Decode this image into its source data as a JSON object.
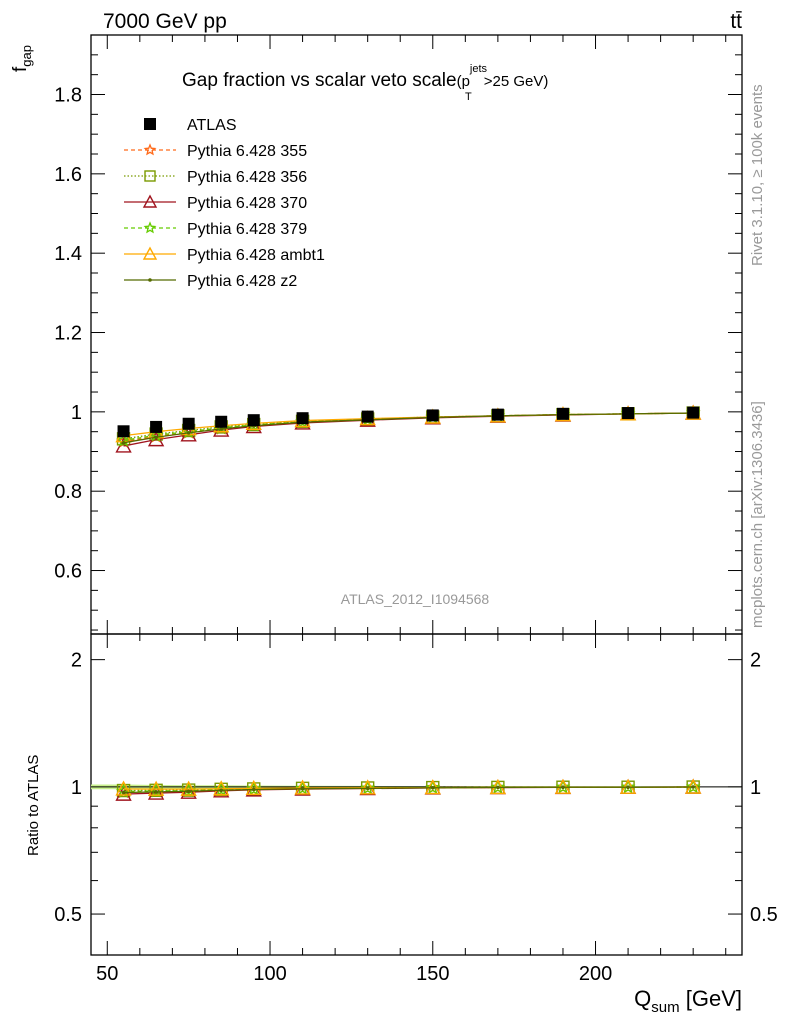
{
  "chart_data": {
    "type": "line",
    "header_left": "7000 GeV pp",
    "header_right": "tt̄",
    "title": "Gap fraction vs scalar veto scale",
    "title_cut_prefix": "(p",
    "title_cut_sup": "jets",
    "title_cut_sub": "T",
    "title_cut_suffix": ">25 GeV)",
    "ylabel_main": "f",
    "ylabel_main_sub": "gap",
    "ylabel_ratio": "Ratio to ATLAS",
    "xlabel": "Q",
    "xlabel_sub": "sum",
    "xlabel_unit": " [GeV]",
    "analysis_id": "ATLAS_2012_I1094568",
    "side_label_top": "Rivet 3.1.10, ≥ 100k events",
    "side_label_bottom": "mcplots.cern.ch [arXiv:1306.3436]",
    "xlim": [
      45,
      245
    ],
    "ylim_main": [
      0.44,
      1.95
    ],
    "ylim_ratio": [
      0.4,
      2.3
    ],
    "x_ticks": [
      50,
      100,
      150,
      200
    ],
    "y_ticks_main": [
      0.6,
      0.8,
      1,
      1.2,
      1.4,
      1.6,
      1.8
    ],
    "y_ticks_ratio": [
      0.5,
      1,
      2
    ],
    "x": [
      55,
      65,
      75,
      85,
      95,
      110,
      130,
      150,
      170,
      190,
      210,
      230
    ],
    "data": {
      "name": "ATLAS",
      "values": [
        0.951,
        0.962,
        0.97,
        0.975,
        0.979,
        0.984,
        0.988,
        0.991,
        0.993,
        0.995,
        0.997,
        0.998
      ],
      "errors": [
        0.012,
        0.01,
        0.009,
        0.008,
        0.007,
        0.006,
        0.005,
        0.004,
        0.004,
        0.003,
        0.003,
        0.002
      ]
    },
    "series": [
      {
        "name": "Pythia 6.428 355",
        "color": "#ff6a1a",
        "dash": "4,3",
        "marker": "star",
        "values": [
          0.925,
          0.938,
          0.948,
          0.958,
          0.966,
          0.975,
          0.981,
          0.987,
          0.99,
          0.993,
          0.995,
          0.997
        ]
      },
      {
        "name": "Pythia 6.428 356",
        "color": "#7a9a00",
        "dash": "1.5,2",
        "marker": "square",
        "values": [
          0.932,
          0.944,
          0.953,
          0.962,
          0.968,
          0.976,
          0.982,
          0.987,
          0.99,
          0.993,
          0.995,
          0.997
        ]
      },
      {
        "name": "Pythia 6.428 370",
        "color": "#a0141e",
        "dash": "",
        "marker": "triangle",
        "values": [
          0.914,
          0.93,
          0.942,
          0.954,
          0.963,
          0.972,
          0.979,
          0.985,
          0.989,
          0.992,
          0.995,
          0.997
        ]
      },
      {
        "name": "Pythia 6.428 379",
        "color": "#66cc00",
        "dash": "4,3",
        "marker": "star",
        "values": [
          0.928,
          0.941,
          0.95,
          0.96,
          0.967,
          0.975,
          0.981,
          0.986,
          0.99,
          0.993,
          0.995,
          0.997
        ]
      },
      {
        "name": "Pythia 6.428 ambt1",
        "color": "#ffaa00",
        "dash": "",
        "marker": "triangle",
        "values": [
          0.94,
          0.95,
          0.958,
          0.965,
          0.971,
          0.978,
          0.983,
          0.987,
          0.99,
          0.993,
          0.995,
          0.997
        ]
      },
      {
        "name": "Pythia 6.428 z2",
        "color": "#556b00",
        "dash": "",
        "marker": "dot",
        "values": [
          0.922,
          0.936,
          0.947,
          0.957,
          0.965,
          0.974,
          0.98,
          0.986,
          0.99,
          0.993,
          0.995,
          0.997
        ]
      }
    ]
  }
}
